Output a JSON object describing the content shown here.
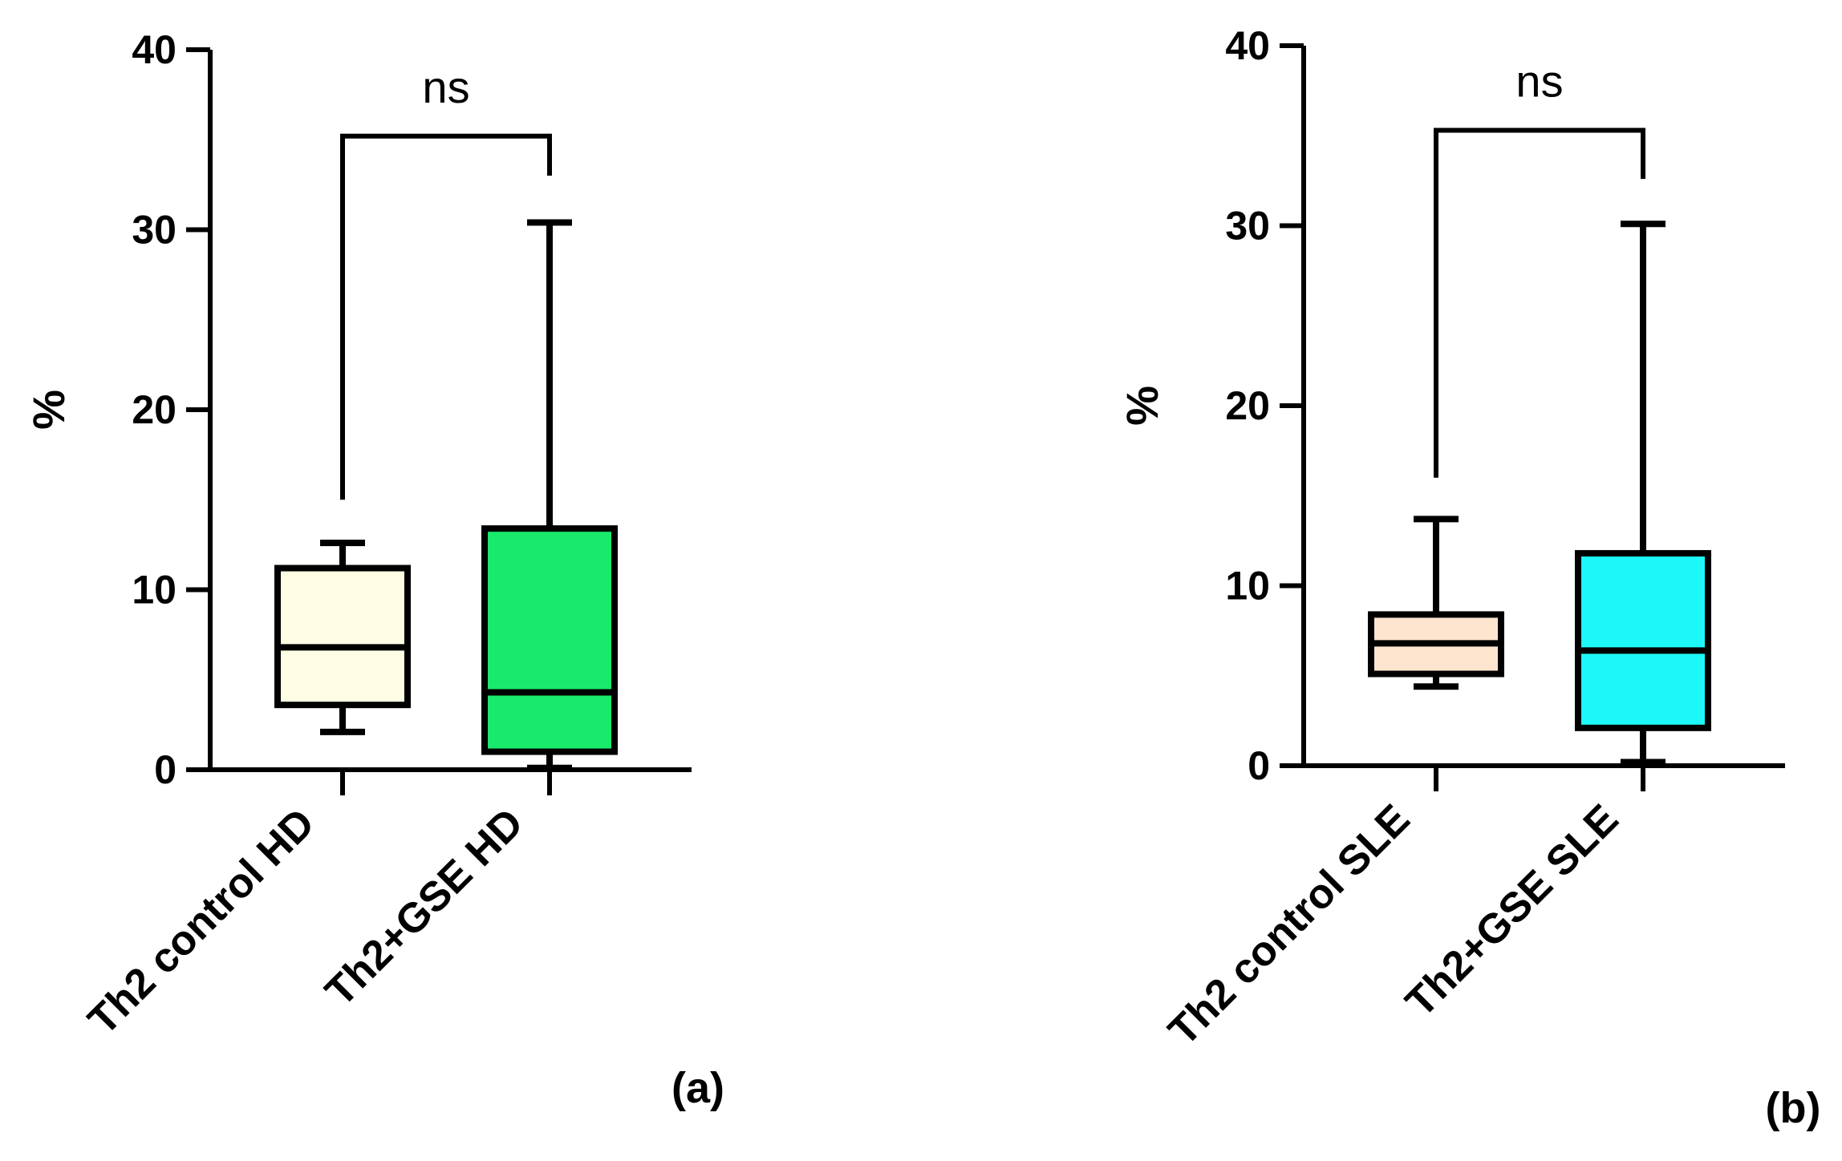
{
  "chart_data": [
    {
      "type": "box",
      "panel_label": "(a)",
      "ylabel": "%",
      "ylim": [
        0,
        40
      ],
      "yticks": [
        "0",
        "10",
        "20",
        "30",
        "40"
      ],
      "categories": [
        "Th2 control HD",
        "Th2+GSE HD"
      ],
      "boxes": [
        {
          "name": "Th2 control HD",
          "min": 2.1,
          "q1": 3.6,
          "median": 6.8,
          "q3": 11.2,
          "max": 12.6,
          "color": "#fdfde3"
        },
        {
          "name": "Th2+GSE HD",
          "min": 0.1,
          "q1": 1.0,
          "median": 4.3,
          "q3": 13.4,
          "max": 30.4,
          "color": "#19ea6c"
        }
      ],
      "significance": {
        "label": "ns",
        "bracket_y": 35.2,
        "left_drop_to": 15.0,
        "right_drop_to": 33.0
      }
    },
    {
      "type": "box",
      "panel_label": "(b)",
      "ylabel": "%",
      "ylim": [
        0,
        40
      ],
      "yticks": [
        "0",
        "10",
        "20",
        "30",
        "40"
      ],
      "categories": [
        "Th2 control SLE",
        "Th2+GSE SLE"
      ],
      "boxes": [
        {
          "name": "Th2 control SLE",
          "min": 4.4,
          "q1": 5.1,
          "median": 6.8,
          "q3": 8.4,
          "max": 13.7,
          "color": "#fde5cf"
        },
        {
          "name": "Th2+GSE SLE",
          "min": 0.2,
          "q1": 2.1,
          "median": 6.4,
          "q3": 11.8,
          "max": 30.1,
          "color": "#1ef7f7"
        }
      ],
      "significance": {
        "label": "ns",
        "bracket_y": 35.3,
        "left_drop_to": 16.0,
        "right_drop_to": 32.6
      }
    }
  ]
}
